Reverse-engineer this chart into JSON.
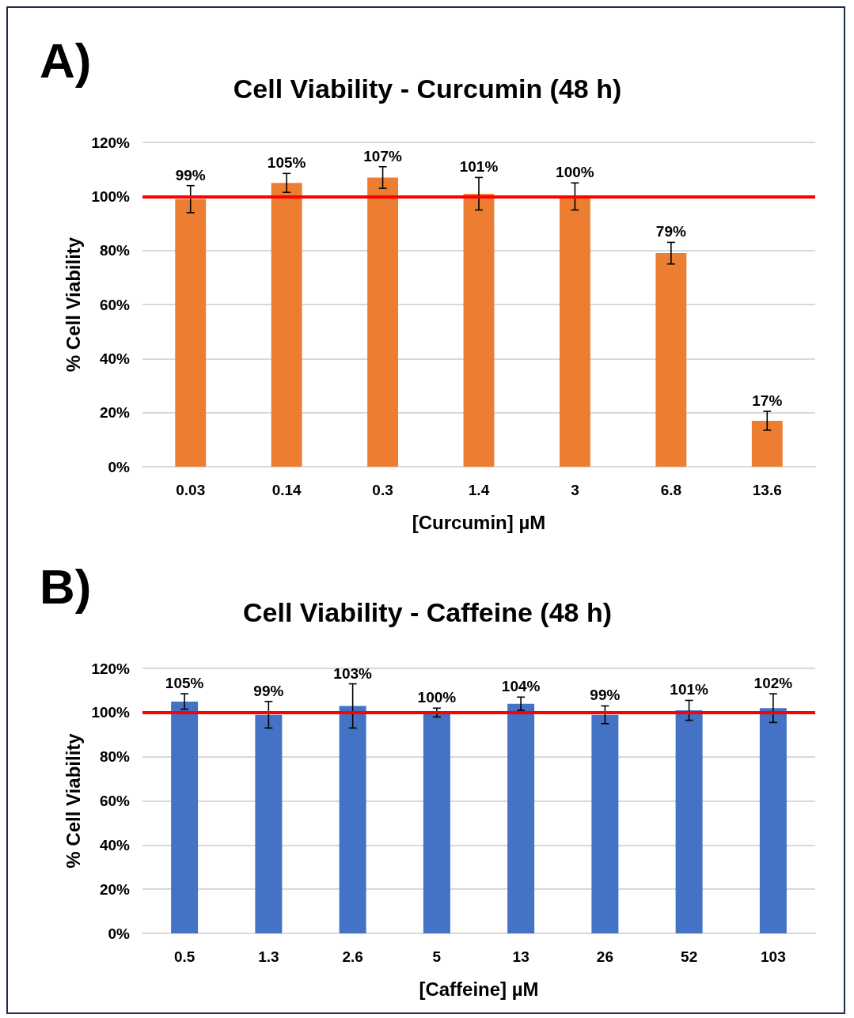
{
  "chart_data": [
    {
      "type": "bar",
      "title": "Cell Viability - Curcumin (48 h)",
      "xlabel": "[Curcumin] µM",
      "ylabel": "% Cell Viability",
      "annotations": [
        "A)"
      ],
      "categories": [
        "0.03",
        "0.14",
        "0.3",
        "1.4",
        "3",
        "6.8",
        "13.6"
      ],
      "series": [
        {
          "color": "#ed7d31",
          "values": [
            99,
            105,
            107,
            101,
            100,
            79,
            17
          ],
          "errors": [
            5,
            3.5,
            4,
            6,
            5,
            4,
            3.5
          ],
          "value_labels": [
            "99%",
            "105%",
            "107%",
            "101%",
            "100%",
            "79%",
            "17%"
          ]
        }
      ],
      "ylim": [
        0,
        120
      ],
      "yticks": [
        {
          "value": 0,
          "label": "0%"
        },
        {
          "value": 20,
          "label": "20%"
        },
        {
          "value": 40,
          "label": "40%"
        },
        {
          "value": 60,
          "label": "60%"
        },
        {
          "value": 80,
          "label": "80%"
        },
        {
          "value": 100,
          "label": "100%"
        },
        {
          "value": 120,
          "label": "120%"
        }
      ],
      "grid": "y",
      "ref_lines": [
        {
          "axis": "y",
          "value": 100,
          "color": "#ff0000"
        }
      ]
    },
    {
      "type": "bar",
      "title": "Cell Viability - Caffeine (48 h)",
      "xlabel": "[Caffeine] µM",
      "ylabel": "% Cell Viability",
      "annotations": [
        "B)"
      ],
      "categories": [
        "0.5",
        "1.3",
        "2.6",
        "5",
        "13",
        "26",
        "52",
        "103"
      ],
      "series": [
        {
          "color": "#4472c4",
          "values": [
            105,
            99,
            103,
            100,
            104,
            99,
            101,
            102
          ],
          "errors": [
            3.5,
            6,
            10,
            2,
            3,
            4,
            4.5,
            6.5
          ],
          "value_labels": [
            "105%",
            "99%",
            "103%",
            "100%",
            "104%",
            "99%",
            "101%",
            "102%"
          ]
        }
      ],
      "ylim": [
        0,
        120
      ],
      "yticks": [
        {
          "value": 0,
          "label": "0%"
        },
        {
          "value": 20,
          "label": "20%"
        },
        {
          "value": 40,
          "label": "40%"
        },
        {
          "value": 60,
          "label": "60%"
        },
        {
          "value": 80,
          "label": "80%"
        },
        {
          "value": 100,
          "label": "100%"
        },
        {
          "value": 120,
          "label": "120%"
        }
      ],
      "grid": "y",
      "ref_lines": [
        {
          "axis": "y",
          "value": 100,
          "color": "#ff0000"
        }
      ]
    }
  ]
}
